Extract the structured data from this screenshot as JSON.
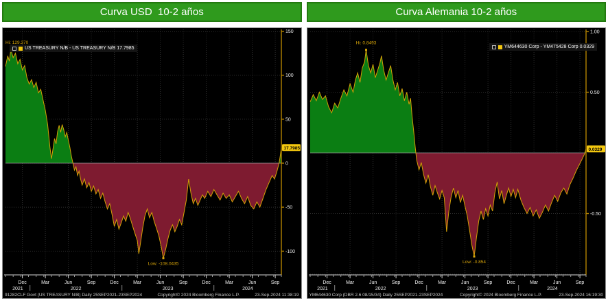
{
  "colors": {
    "title_bg": "#2f9a1d",
    "title_border": "#23790f",
    "title_text": "#ffffff",
    "chart_bg": "#000000",
    "positive_fill": "#0b7e13",
    "negative_fill": "#7e1b30",
    "line": "#d4a106",
    "axis": "#b48400",
    "grid": "#2e2e2e",
    "zero_line": "#9a9a9a",
    "value_box_bg": "#f3c70f",
    "annotation": "#d8a50a",
    "swatch": "#f3c70f",
    "x_axis_line": "#d9d9d9"
  },
  "panels": [
    {
      "title": "Curva USD  10-2 años",
      "legend_text": "US TREASURY N/B - US TREASURY N/B 17.7985",
      "footer_left": "91282CLF Govt (US TREASURY N/B)  Daily 25SEP2021-23SEP2024",
      "footer_center": "Copyright© 2024 Bloomberg Finance L.P.",
      "footer_right": "23-Sep-2024 11:38:19"
    },
    {
      "title": "Curva Alemania 10-2 años",
      "legend_text": "YM644630 Corp - YM475428 Corp 0.0329",
      "footer_left": "YM644630 Corp (DBR 2.6 08/15/34)  Daily 25SEP2021-23SEP2024",
      "footer_center": "Copyright© 2024 Bloomberg Finance L.P.",
      "footer_right": "23-Sep-2024 16:19:30"
    }
  ],
  "chart_data": [
    {
      "type": "area",
      "title": "Curva USD  10-2 años",
      "series_name": "US TREASURY N/B - US TREASURY N/B",
      "x_unit": "months since late Sep 2021",
      "x_range_months": 36,
      "ylabel": "spread (bps)",
      "ylim": [
        -127,
        152
      ],
      "ygrid": [
        150,
        100,
        50,
        0,
        -50,
        -100
      ],
      "yticks": [
        {
          "v": 150,
          "label": "150"
        },
        {
          "v": 100,
          "label": "100"
        },
        {
          "v": 50,
          "label": "50"
        },
        {
          "v": 0,
          "label": "0"
        },
        {
          "v": -50,
          "label": "-50"
        },
        {
          "v": -100,
          "label": "-100"
        }
      ],
      "last_value": 17.7985,
      "last_label": "17.7985",
      "hi": {
        "m": 0.7,
        "v": 129.37,
        "label": "Hi: 129.370"
      },
      "low": {
        "m": 20.6,
        "v": -108.0435,
        "label": "Low: -108.0435"
      },
      "xticks": [
        {
          "m": 2.2,
          "label": "Dec"
        },
        {
          "m": 5.2,
          "label": "Mar"
        },
        {
          "m": 8.2,
          "label": "Jun"
        },
        {
          "m": 11.2,
          "label": "Sep"
        },
        {
          "m": 14.2,
          "label": "Dec"
        },
        {
          "m": 17.2,
          "label": "Mar"
        },
        {
          "m": 20.2,
          "label": "Jun"
        },
        {
          "m": 23.2,
          "label": "Sep"
        },
        {
          "m": 26.2,
          "label": "Dec"
        },
        {
          "m": 29.2,
          "label": "Mar"
        },
        {
          "m": 32.2,
          "label": "Jun"
        },
        {
          "m": 35.2,
          "label": "Sep"
        }
      ],
      "years": [
        {
          "m": 1.6,
          "label": "2021"
        },
        {
          "m": 9.2,
          "label": "2022"
        },
        {
          "m": 21.2,
          "label": "2023"
        },
        {
          "m": 31.6,
          "label": "2024"
        }
      ],
      "year_dividers": [
        3.2,
        15.2,
        27.2
      ],
      "points": [
        [
          0,
          110
        ],
        [
          0.3,
          122
        ],
        [
          0.5,
          116
        ],
        [
          0.7,
          129.37
        ],
        [
          1,
          120
        ],
        [
          1.3,
          125
        ],
        [
          1.6,
          113
        ],
        [
          1.9,
          118
        ],
        [
          2.2,
          106
        ],
        [
          2.5,
          111
        ],
        [
          2.8,
          97
        ],
        [
          3.1,
          90
        ],
        [
          3.4,
          95
        ],
        [
          3.7,
          86
        ],
        [
          4,
          92
        ],
        [
          4.3,
          80
        ],
        [
          4.6,
          84
        ],
        [
          4.9,
          72
        ],
        [
          5.2,
          60
        ],
        [
          5.5,
          44
        ],
        [
          5.8,
          18
        ],
        [
          6,
          5
        ],
        [
          6.2,
          16
        ],
        [
          6.4,
          28
        ],
        [
          6.6,
          22
        ],
        [
          6.8,
          36
        ],
        [
          7,
          43
        ],
        [
          7.2,
          35
        ],
        [
          7.4,
          44
        ],
        [
          7.6,
          38
        ],
        [
          7.8,
          30
        ],
        [
          8,
          35
        ],
        [
          8.2,
          26
        ],
        [
          8.4,
          18
        ],
        [
          8.6,
          8
        ],
        [
          8.8,
          0
        ],
        [
          9,
          -8
        ],
        [
          9.2,
          -4
        ],
        [
          9.4,
          -14
        ],
        [
          9.6,
          -9
        ],
        [
          9.8,
          -18
        ],
        [
          10,
          -25
        ],
        [
          10.3,
          -18
        ],
        [
          10.6,
          -28
        ],
        [
          10.9,
          -22
        ],
        [
          11.2,
          -32
        ],
        [
          11.5,
          -26
        ],
        [
          11.8,
          -35
        ],
        [
          12.1,
          -30
        ],
        [
          12.4,
          -40
        ],
        [
          12.7,
          -34
        ],
        [
          13,
          -44
        ],
        [
          13.3,
          -52
        ],
        [
          13.6,
          -46
        ],
        [
          13.9,
          -58
        ],
        [
          14.2,
          -72
        ],
        [
          14.5,
          -64
        ],
        [
          14.8,
          -75
        ],
        [
          15.1,
          -68
        ],
        [
          15.4,
          -60
        ],
        [
          15.7,
          -66
        ],
        [
          16,
          -56
        ],
        [
          16.3,
          -63
        ],
        [
          16.6,
          -72
        ],
        [
          16.9,
          -80
        ],
        [
          17.2,
          -88
        ],
        [
          17.4,
          -103
        ],
        [
          17.6,
          -92
        ],
        [
          17.9,
          -74
        ],
        [
          18.2,
          -60
        ],
        [
          18.5,
          -52
        ],
        [
          18.8,
          -62
        ],
        [
          19.1,
          -56
        ],
        [
          19.4,
          -66
        ],
        [
          19.7,
          -74
        ],
        [
          20,
          -82
        ],
        [
          20.3,
          -94
        ],
        [
          20.6,
          -108.04
        ],
        [
          20.9,
          -98
        ],
        [
          21.2,
          -86
        ],
        [
          21.5,
          -76
        ],
        [
          21.8,
          -70
        ],
        [
          22.1,
          -78
        ],
        [
          22.4,
          -72
        ],
        [
          22.7,
          -64
        ],
        [
          23,
          -70
        ],
        [
          23.3,
          -56
        ],
        [
          23.6,
          -42
        ],
        [
          23.9,
          -18
        ],
        [
          24.2,
          -34
        ],
        [
          24.5,
          -46
        ],
        [
          24.8,
          -40
        ],
        [
          25.1,
          -48
        ],
        [
          25.4,
          -42
        ],
        [
          25.7,
          -36
        ],
        [
          26,
          -40
        ],
        [
          26.4,
          -32
        ],
        [
          26.8,
          -38
        ],
        [
          27.2,
          -30
        ],
        [
          27.6,
          -36
        ],
        [
          28,
          -42
        ],
        [
          28.4,
          -34
        ],
        [
          28.8,
          -40
        ],
        [
          29.2,
          -36
        ],
        [
          29.6,
          -44
        ],
        [
          30,
          -38
        ],
        [
          30.4,
          -32
        ],
        [
          30.8,
          -40
        ],
        [
          31.2,
          -46
        ],
        [
          31.6,
          -38
        ],
        [
          32,
          -48
        ],
        [
          32.4,
          -52
        ],
        [
          32.8,
          -44
        ],
        [
          33.2,
          -50
        ],
        [
          33.6,
          -40
        ],
        [
          34,
          -30
        ],
        [
          34.4,
          -22
        ],
        [
          34.8,
          -14
        ],
        [
          35.1,
          -18
        ],
        [
          35.4,
          -10
        ],
        [
          35.7,
          0
        ],
        [
          35.85,
          8
        ],
        [
          36,
          17.8
        ]
      ]
    },
    {
      "type": "area",
      "title": "Curva Alemania 10-2 años",
      "series_name": "YM644630 Corp - YM475428 Corp",
      "x_unit": "months since late Sep 2021",
      "x_range_months": 36,
      "ylabel": "spread (%)",
      "ylim": [
        -1.006,
        1.017
      ],
      "ygrid": [
        1.0,
        0.5,
        0,
        -0.5,
        -1.0
      ],
      "yticks": [
        {
          "v": 1.0,
          "label": "1.00"
        },
        {
          "v": 0.5,
          "label": "0.50"
        },
        {
          "v": -0.5,
          "label": "-0.50"
        }
      ],
      "last_value": 0.0329,
      "last_label": "0.0329",
      "hi": {
        "m": 7.3,
        "v": 0.8493,
        "label": "Hi: 0.8493"
      },
      "low": {
        "m": 21.4,
        "v": -0.854,
        "label": "Low: -0.854"
      },
      "xticks": [
        {
          "m": 2.2,
          "label": "Dec"
        },
        {
          "m": 5.2,
          "label": "Mar"
        },
        {
          "m": 8.2,
          "label": "Jun"
        },
        {
          "m": 11.2,
          "label": "Sep"
        },
        {
          "m": 14.2,
          "label": "Dec"
        },
        {
          "m": 17.2,
          "label": "Mar"
        },
        {
          "m": 20.2,
          "label": "Jun"
        },
        {
          "m": 23.2,
          "label": "Sep"
        },
        {
          "m": 26.2,
          "label": "Dec"
        },
        {
          "m": 29.2,
          "label": "Mar"
        },
        {
          "m": 32.2,
          "label": "Jun"
        },
        {
          "m": 35.2,
          "label": "Sep"
        }
      ],
      "years": [
        {
          "m": 1.6,
          "label": "2021"
        },
        {
          "m": 9.2,
          "label": "2022"
        },
        {
          "m": 21.2,
          "label": "2023"
        },
        {
          "m": 31.6,
          "label": "2024"
        }
      ],
      "year_dividers": [
        3.2,
        15.2,
        27.2
      ],
      "points": [
        [
          0,
          0.42
        ],
        [
          0.4,
          0.48
        ],
        [
          0.8,
          0.43
        ],
        [
          1.2,
          0.5
        ],
        [
          1.6,
          0.44
        ],
        [
          2,
          0.47
        ],
        [
          2.4,
          0.38
        ],
        [
          2.8,
          0.33
        ],
        [
          3.2,
          0.41
        ],
        [
          3.6,
          0.37
        ],
        [
          4,
          0.45
        ],
        [
          4.4,
          0.52
        ],
        [
          4.8,
          0.47
        ],
        [
          5.2,
          0.57
        ],
        [
          5.6,
          0.5
        ],
        [
          5.9,
          0.6
        ],
        [
          6.2,
          0.66
        ],
        [
          6.5,
          0.58
        ],
        [
          6.8,
          0.7
        ],
        [
          7.1,
          0.75
        ],
        [
          7.3,
          0.8493
        ],
        [
          7.6,
          0.72
        ],
        [
          7.9,
          0.66
        ],
        [
          8.2,
          0.73
        ],
        [
          8.5,
          0.62
        ],
        [
          8.8,
          0.68
        ],
        [
          9.1,
          0.74
        ],
        [
          9.3,
          0.8
        ],
        [
          9.6,
          0.68
        ],
        [
          9.9,
          0.6
        ],
        [
          10.2,
          0.66
        ],
        [
          10.5,
          0.72
        ],
        [
          10.8,
          0.6
        ],
        [
          11.1,
          0.52
        ],
        [
          11.4,
          0.58
        ],
        [
          11.7,
          0.47
        ],
        [
          12,
          0.53
        ],
        [
          12.3,
          0.43
        ],
        [
          12.6,
          0.5
        ],
        [
          12.9,
          0.4
        ],
        [
          13.1,
          0.45
        ],
        [
          13.3,
          0.3
        ],
        [
          13.5,
          0.18
        ],
        [
          13.7,
          0.05
        ],
        [
          13.9,
          -0.06
        ],
        [
          14.2,
          -0.14
        ],
        [
          14.5,
          -0.08
        ],
        [
          14.8,
          -0.18
        ],
        [
          15.1,
          -0.25
        ],
        [
          15.4,
          -0.18
        ],
        [
          15.7,
          -0.28
        ],
        [
          16,
          -0.35
        ],
        [
          16.3,
          -0.27
        ],
        [
          16.6,
          -0.33
        ],
        [
          16.9,
          -0.38
        ],
        [
          17.2,
          -0.31
        ],
        [
          17.5,
          -0.37
        ],
        [
          17.8,
          -0.65
        ],
        [
          18.1,
          -0.48
        ],
        [
          18.4,
          -0.36
        ],
        [
          18.7,
          -0.29
        ],
        [
          19,
          -0.37
        ],
        [
          19.3,
          -0.31
        ],
        [
          19.6,
          -0.41
        ],
        [
          19.9,
          -0.35
        ],
        [
          20.2,
          -0.44
        ],
        [
          20.5,
          -0.52
        ],
        [
          20.8,
          -0.64
        ],
        [
          21.1,
          -0.76
        ],
        [
          21.4,
          -0.854
        ],
        [
          21.7,
          -0.7
        ],
        [
          22,
          -0.56
        ],
        [
          22.3,
          -0.48
        ],
        [
          22.6,
          -0.55
        ],
        [
          22.9,
          -0.46
        ],
        [
          23.2,
          -0.52
        ],
        [
          23.5,
          -0.43
        ],
        [
          23.8,
          -0.48
        ],
        [
          24.1,
          -0.33
        ],
        [
          24.4,
          -0.24
        ],
        [
          24.7,
          -0.38
        ],
        [
          25,
          -0.31
        ],
        [
          25.3,
          -0.42
        ],
        [
          25.6,
          -0.35
        ],
        [
          25.9,
          -0.29
        ],
        [
          26.2,
          -0.36
        ],
        [
          26.5,
          -0.3
        ],
        [
          26.8,
          -0.37
        ],
        [
          27.1,
          -0.3
        ],
        [
          27.5,
          -0.39
        ],
        [
          27.9,
          -0.45
        ],
        [
          28.3,
          -0.5
        ],
        [
          28.7,
          -0.45
        ],
        [
          29.1,
          -0.52
        ],
        [
          29.5,
          -0.47
        ],
        [
          29.9,
          -0.54
        ],
        [
          30.3,
          -0.49
        ],
        [
          30.7,
          -0.43
        ],
        [
          31.1,
          -0.48
        ],
        [
          31.5,
          -0.41
        ],
        [
          31.9,
          -0.35
        ],
        [
          32.3,
          -0.4
        ],
        [
          32.7,
          -0.33
        ],
        [
          33.1,
          -0.29
        ],
        [
          33.5,
          -0.34
        ],
        [
          33.9,
          -0.26
        ],
        [
          34.3,
          -0.21
        ],
        [
          34.7,
          -0.15
        ],
        [
          35.1,
          -0.1
        ],
        [
          35.5,
          -0.05
        ],
        [
          35.8,
          -0.01
        ],
        [
          36,
          0.0329
        ]
      ]
    }
  ]
}
